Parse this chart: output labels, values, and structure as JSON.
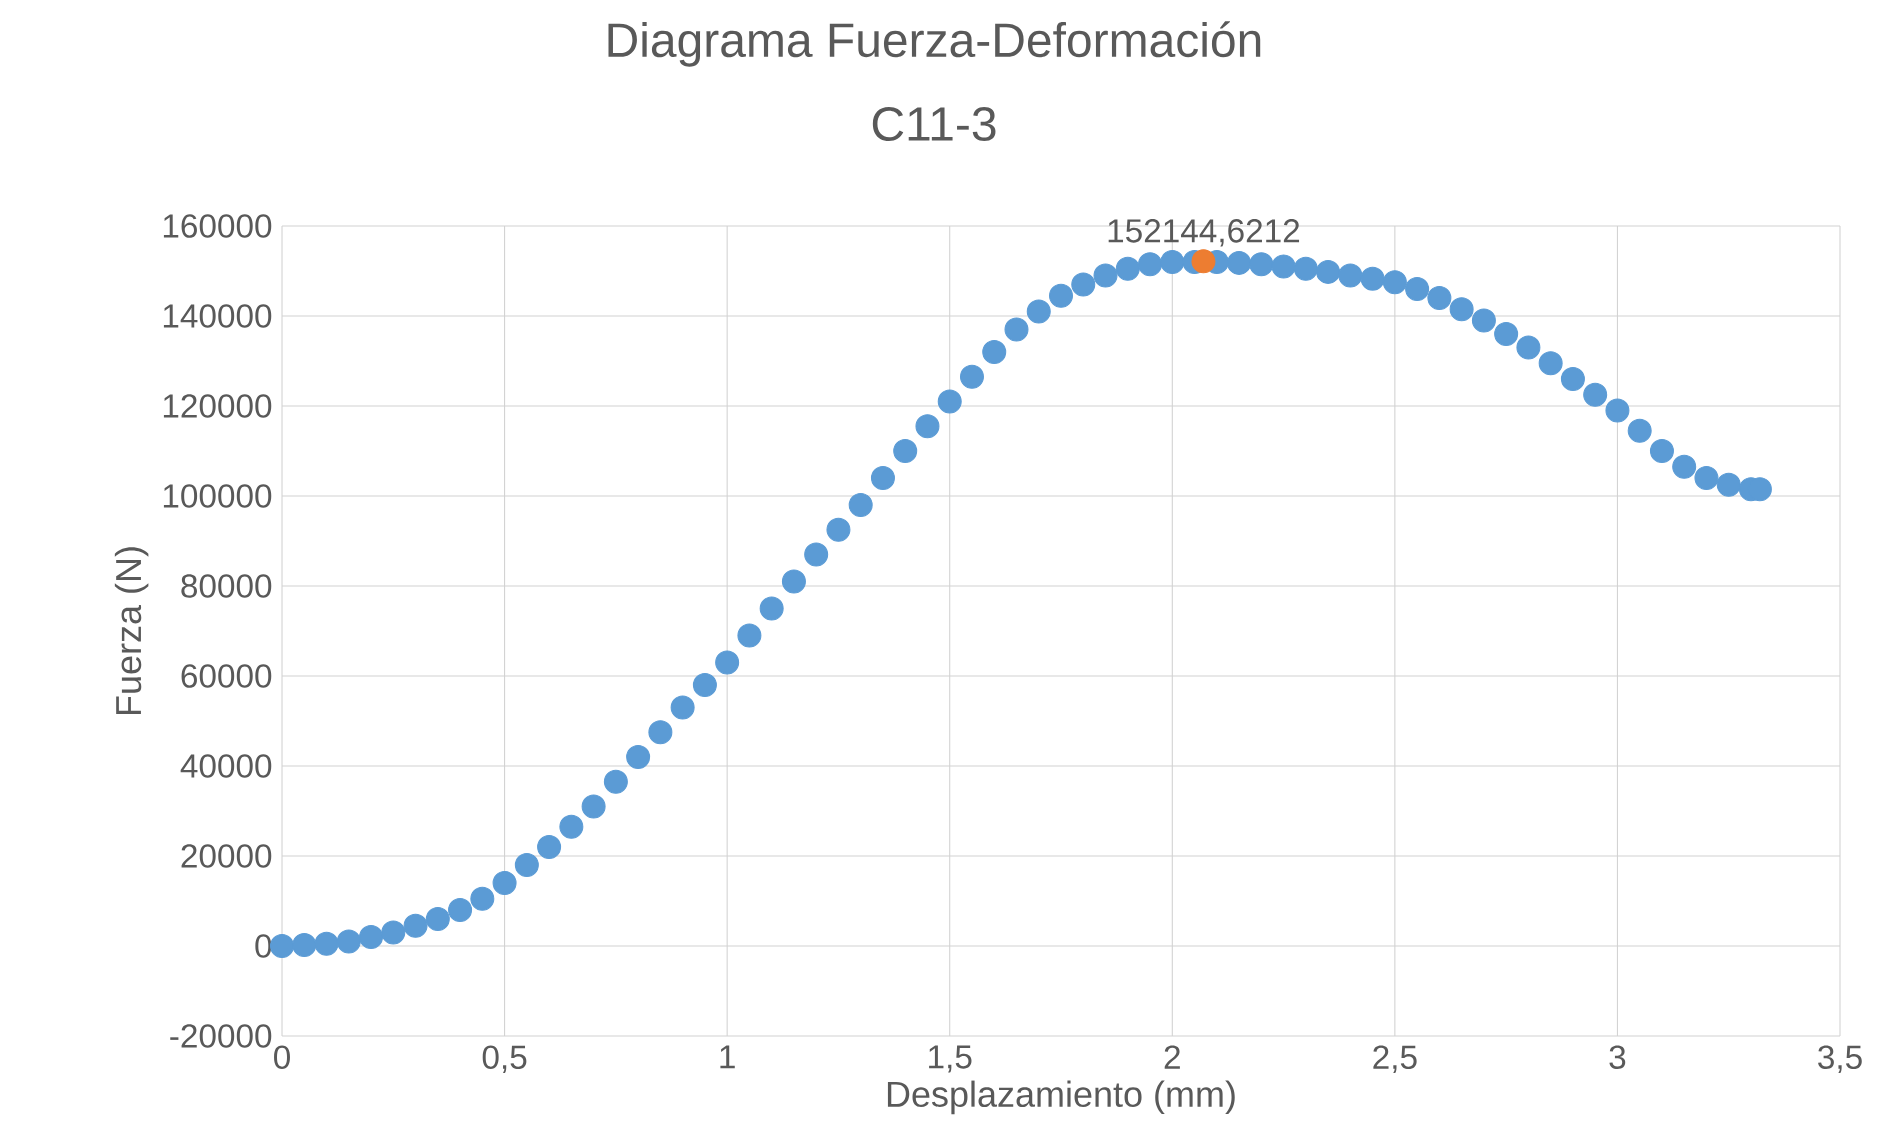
{
  "chart_data": {
    "type": "scatter",
    "title": "Diagrama Fuerza-Deformación",
    "subtitle": "C11-3",
    "xlabel": "Desplazamiento (mm)",
    "ylabel": "Fuerza (N)",
    "xlim": [
      0,
      3.5
    ],
    "ylim": [
      -20000,
      160000
    ],
    "xticks": [
      0,
      {
        "value": 0.5,
        "label": "0,5"
      },
      1,
      {
        "value": 1.5,
        "label": "1,5"
      },
      2,
      {
        "value": 2.5,
        "label": "2,5"
      },
      3,
      {
        "value": 3.5,
        "label": "3,5"
      }
    ],
    "yticks": [
      -20000,
      0,
      20000,
      40000,
      60000,
      80000,
      100000,
      120000,
      140000,
      160000
    ],
    "grid": true,
    "marker": "circle",
    "series": [
      {
        "color": "#5b9bd5",
        "x": [
          0,
          0.05,
          0.1,
          0.15,
          0.2,
          0.25,
          0.3,
          0.35,
          0.4,
          0.45,
          0.5,
          0.55,
          0.6,
          0.65,
          0.7,
          0.75,
          0.8,
          0.85,
          0.9,
          0.95,
          1.0,
          1.05,
          1.1,
          1.15,
          1.2,
          1.25,
          1.3,
          1.35,
          1.4,
          1.45,
          1.5,
          1.55,
          1.6,
          1.65,
          1.7,
          1.75,
          1.8,
          1.85,
          1.9,
          1.95,
          2.0,
          2.05,
          2.1,
          2.15,
          2.2,
          2.25,
          2.3,
          2.35,
          2.4,
          2.45,
          2.5,
          2.55,
          2.6,
          2.65,
          2.7,
          2.75,
          2.8,
          2.85,
          2.9,
          2.95,
          3.0,
          3.05,
          3.1,
          3.15,
          3.2,
          3.25,
          3.3,
          3.32
        ],
        "values": [
          0,
          200,
          500,
          1000,
          2000,
          3000,
          4500,
          6000,
          8000,
          10500,
          14000,
          18000,
          22000,
          26500,
          31000,
          36500,
          42000,
          47500,
          53000,
          58000,
          63000,
          69000,
          75000,
          81000,
          87000,
          92500,
          98000,
          104000,
          110000,
          115500,
          121000,
          126500,
          132000,
          137000,
          141000,
          144500,
          147000,
          149000,
          150500,
          151500,
          152000,
          152000,
          152000,
          151800,
          151500,
          151000,
          150500,
          149800,
          149000,
          148300,
          147500,
          146000,
          144000,
          141500,
          139000,
          136000,
          133000,
          129500,
          126000,
          122500,
          119000,
          114500,
          110000,
          106500,
          104000,
          102500,
          101500,
          101500
        ]
      },
      {
        "color": "#ed7d31",
        "x": [
          2.07
        ],
        "values": [
          152144.6212
        ],
        "value_labels": [
          "152144,6212"
        ]
      }
    ]
  }
}
